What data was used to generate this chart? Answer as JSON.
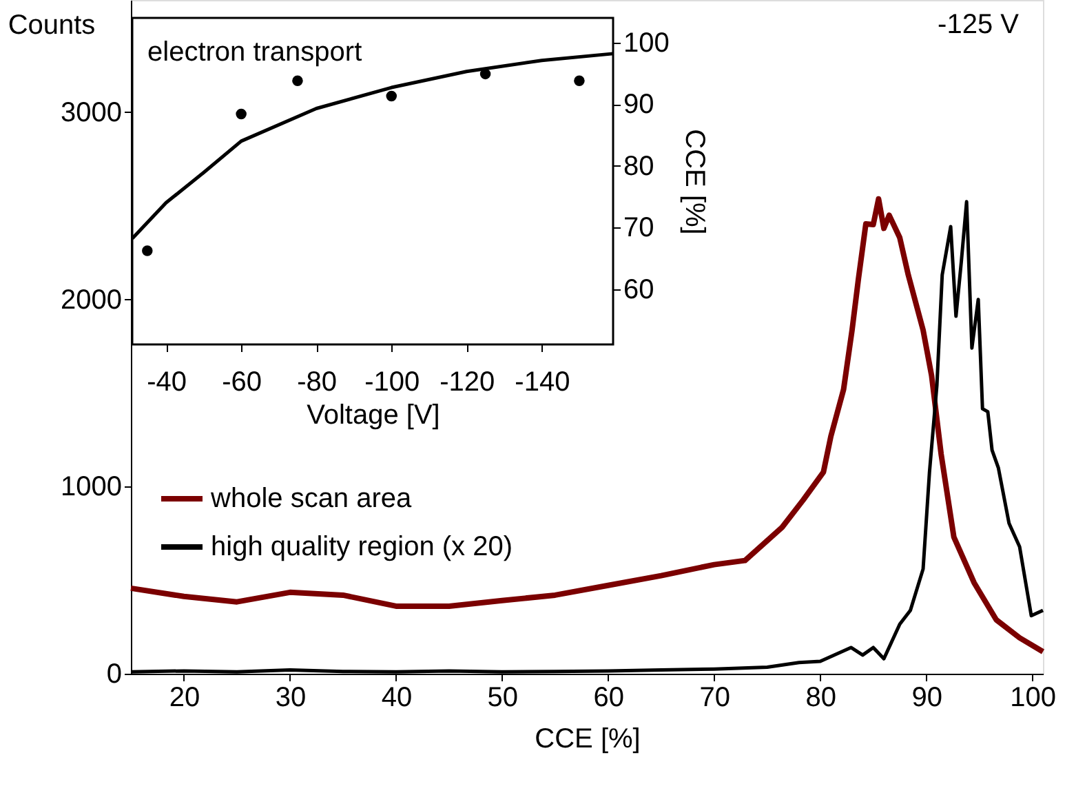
{
  "chart_data": [
    {
      "type": "line",
      "xlabel": "CCE [%]",
      "ylabel": "Counts",
      "xlim": [
        15,
        101
      ],
      "ylim": [
        0,
        3600
      ],
      "xticks": [
        20,
        30,
        40,
        50,
        60,
        70,
        80,
        90,
        100
      ],
      "yticks": [
        0,
        1000,
        2000,
        3000
      ],
      "legend": "left",
      "annotations": [
        "-125 V"
      ],
      "series": [
        {
          "name": "whole scan area",
          "color": "#7b0000",
          "x": [
            15,
            20,
            25,
            30,
            35,
            40,
            45,
            50,
            55,
            60,
            65,
            70,
            72.9,
            76.4,
            78.4,
            80.3,
            81,
            82.2,
            83,
            83.6,
            84.3,
            85,
            85.5,
            86,
            86.5,
            87.5,
            88.3,
            89.7,
            90.5,
            91.4,
            92.6,
            94.5,
            96.6,
            98.8,
            101
          ],
          "values": [
            457,
            413,
            384,
            435,
            420,
            361,
            361,
            391,
            420,
            472,
            524,
            583,
            605,
            782,
            929,
            1077,
            1268,
            1519,
            1836,
            2109,
            2404,
            2400,
            2537,
            2380,
            2450,
            2330,
            2131,
            1836,
            1593,
            1173,
            730,
            487,
            288,
            192,
            118
          ]
        },
        {
          "name": "high quality region (x 20)",
          "color": "#000000",
          "x": [
            15,
            20,
            25,
            30,
            35,
            40,
            45,
            50,
            55,
            60,
            65,
            70,
            75,
            78,
            80,
            82.9,
            84,
            85,
            86,
            87.5,
            88.5,
            89.7,
            90.3,
            91,
            91.5,
            92.3,
            92.8,
            93.3,
            93.8,
            94.3,
            94.9,
            95.3,
            95.8,
            96.2,
            96.8,
            97.8,
            98.8,
            99.9,
            101
          ],
          "values": [
            10,
            15,
            10,
            20,
            12,
            10,
            15,
            10,
            12,
            15,
            20,
            25,
            35,
            60,
            66,
            140,
            100,
            140,
            80,
            265,
            339,
            560,
            1077,
            1541,
            2131,
            2389,
            1910,
            2200,
            2522,
            1740,
            2000,
            1416,
            1400,
            1195,
            1099,
            804,
            678,
            310,
            339
          ]
        }
      ]
    },
    {
      "type": "scatter",
      "title": "electron transport",
      "xlabel": "Voltage [V]",
      "ylabel": "CCE [%]",
      "xlim": [
        -31,
        -159
      ],
      "ylim": [
        51,
        104
      ],
      "xticks": [
        -40,
        -60,
        -80,
        -100,
        -120,
        -140
      ],
      "yticks": [
        60,
        70,
        80,
        90,
        100
      ],
      "series": [
        {
          "type": "scatter",
          "color": "#000000",
          "x": [
            -35,
            -60,
            -75,
            -100,
            -125,
            -150
          ],
          "values": [
            66.2,
            88.4,
            93.8,
            91.3,
            94.9,
            93.8
          ]
        },
        {
          "type": "line",
          "color": "#000000",
          "x": [
            -31,
            -40,
            -50,
            -60,
            -80,
            -100,
            -120,
            -140,
            -159
          ],
          "values": [
            68.2,
            74,
            78.9,
            84,
            89.3,
            92.7,
            95.3,
            97.1,
            98.2
          ]
        }
      ]
    }
  ]
}
